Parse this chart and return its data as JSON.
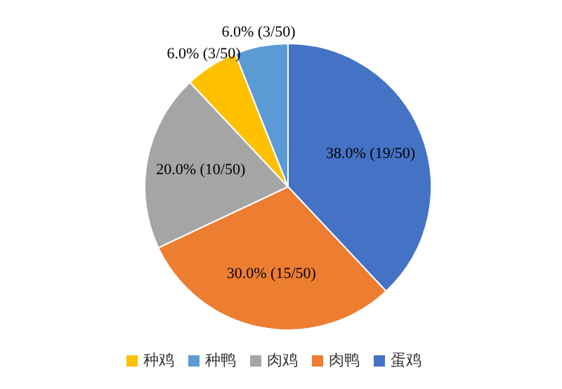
{
  "chart_data": {
    "type": "pie",
    "categories": [
      "蛋鸡",
      "肉鸭",
      "肉鸡",
      "种鸡",
      "种鸭"
    ],
    "values": [
      38,
      30,
      20,
      6,
      6
    ],
    "colors": [
      "#4472c4",
      "#ed7d31",
      "#a5a5a5",
      "#ffc000",
      "#5b9bd5"
    ],
    "value_labels": [
      "38.0% (19/50)",
      "30.0% (15/50)",
      "20.0% (10/50)",
      "6.0% (3/50)",
      "6.0% (3/50)"
    ],
    "legend": "bottom"
  }
}
